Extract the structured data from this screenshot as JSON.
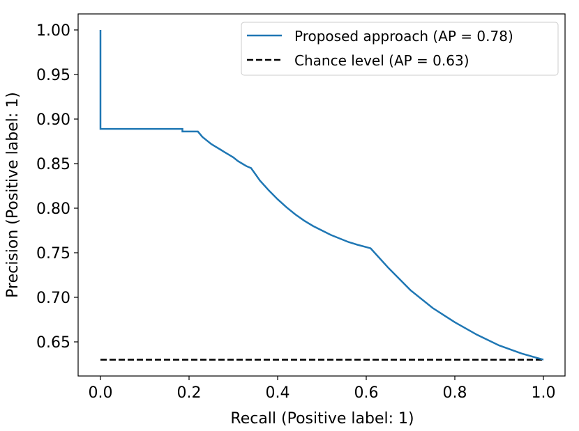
{
  "chart_data": {
    "type": "line",
    "title": "",
    "xlabel": "Recall (Positive label: 1)",
    "ylabel": "Precision (Positive label: 1)",
    "xlim": [
      -0.05,
      1.05
    ],
    "ylim": [
      0.612,
      1.025
    ],
    "xticks": [
      "0.0",
      "0.2",
      "0.4",
      "0.6",
      "0.8",
      "1.0"
    ],
    "yticks": [
      "0.65",
      "0.70",
      "0.75",
      "0.80",
      "0.85",
      "0.90",
      "0.95",
      "1.00"
    ],
    "grid": false,
    "legend_position": "top-right",
    "series": [
      {
        "name": "Proposed approach (AP = 0.78)",
        "color": "#1f77b4",
        "style": "solid",
        "x": [
          0,
          0,
          0.185,
          0.185,
          0.22,
          0.23,
          0.24,
          0.25,
          0.26,
          0.27,
          0.28,
          0.29,
          0.3,
          0.31,
          0.32,
          0.33,
          0.34,
          0.35,
          0.36,
          0.38,
          0.4,
          0.42,
          0.44,
          0.46,
          0.48,
          0.5,
          0.52,
          0.54,
          0.56,
          0.58,
          0.61,
          0.65,
          0.7,
          0.75,
          0.8,
          0.85,
          0.9,
          0.95,
          1.0
        ],
        "y": [
          1.0,
          0.889,
          0.889,
          0.886,
          0.886,
          0.88,
          0.876,
          0.872,
          0.869,
          0.866,
          0.863,
          0.86,
          0.857,
          0.853,
          0.85,
          0.847,
          0.845,
          0.838,
          0.831,
          0.82,
          0.81,
          0.801,
          0.793,
          0.786,
          0.78,
          0.775,
          0.77,
          0.766,
          0.762,
          0.759,
          0.755,
          0.733,
          0.708,
          0.688,
          0.672,
          0.658,
          0.646,
          0.637,
          0.63
        ]
      },
      {
        "name": "Chance level (AP = 0.63)",
        "color": "#000000",
        "style": "dashed",
        "x": [
          0,
          1
        ],
        "y": [
          0.63,
          0.63
        ]
      }
    ]
  }
}
